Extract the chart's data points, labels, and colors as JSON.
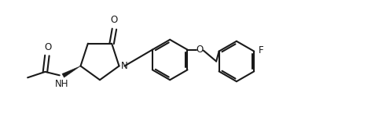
{
  "bg_color": "#ffffff",
  "line_color": "#1a1a1a",
  "line_width": 1.5,
  "figsize": [
    4.72,
    1.51
  ],
  "dpi": 100,
  "xlim": [
    0,
    9.5
  ],
  "ylim": [
    0,
    3.0
  ]
}
